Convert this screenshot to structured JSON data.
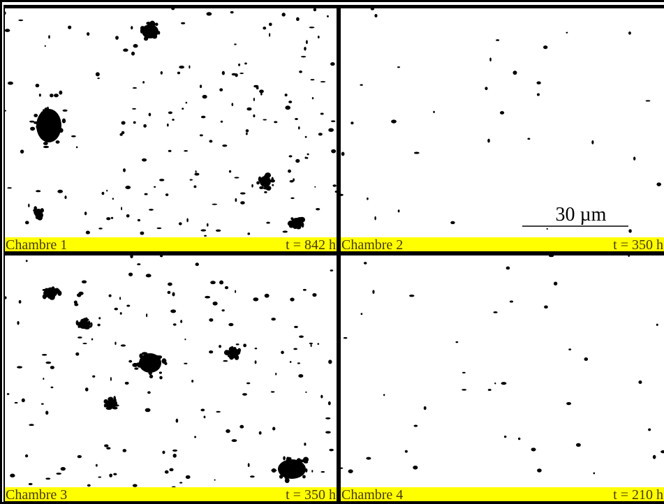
{
  "panels": [
    {
      "label": "Chambre 1",
      "time": "t = 842 h"
    },
    {
      "label": "Chambre 2",
      "time": "t = 350 h"
    },
    {
      "label": "Chambre 3",
      "time": "t = 350 h"
    },
    {
      "label": "Chambre 4",
      "time": "t = 210 h"
    }
  ],
  "scale_bar": "30 µm"
}
